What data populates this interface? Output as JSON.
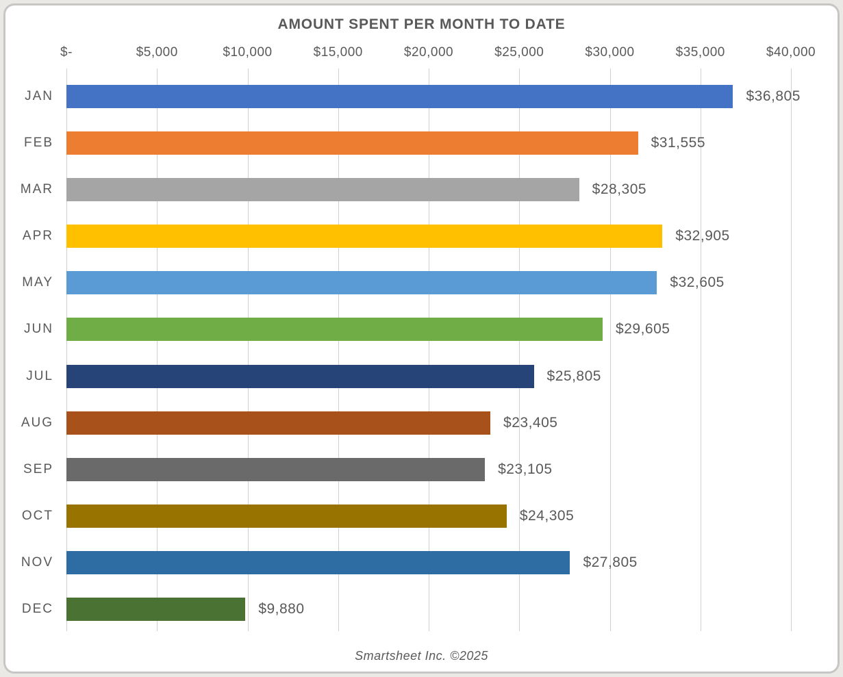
{
  "title": "AMOUNT SPENT PER MONTH TO DATE",
  "footer": "Smartsheet Inc. ©2025",
  "colors": {
    "text": "#595959",
    "gridline": "#d2d0ce",
    "card_background": "#ffffff",
    "card_border": "#c7c6c4",
    "page_background": "#ebe9e6"
  },
  "chart_data": {
    "type": "bar",
    "orientation": "horizontal",
    "title": "AMOUNT SPENT PER MONTH TO DATE",
    "categories": [
      "JAN",
      "FEB",
      "MAR",
      "APR",
      "MAY",
      "JUN",
      "JUL",
      "AUG",
      "SEP",
      "OCT",
      "NOV",
      "DEC"
    ],
    "values": [
      36805,
      31555,
      28305,
      32905,
      32605,
      29605,
      25805,
      23405,
      23105,
      24305,
      27805,
      9880
    ],
    "value_labels": [
      "$36,805",
      "$31,555",
      "$28,305",
      "$32,905",
      "$32,605",
      "$29,605",
      "$25,805",
      "$23,405",
      "$23,105",
      "$24,305",
      "$27,805",
      "$9,880"
    ],
    "bar_colors": [
      "#4472C4",
      "#ED7D31",
      "#A5A5A5",
      "#FFC000",
      "#5B9BD5",
      "#70AD47",
      "#264478",
      "#A9511B",
      "#6A6A6A",
      "#997300",
      "#2E6DA4",
      "#4A7232"
    ],
    "xlabel": "",
    "ylabel": "",
    "xlim": [
      0,
      40000
    ],
    "tick_interval": 5000,
    "axis_tick_labels": [
      "$-",
      "$5,000",
      "$10,000",
      "$15,000",
      "$20,000",
      "$25,000",
      "$30,000",
      "$35,000",
      "$40,000"
    ],
    "grid": true,
    "legend": false
  }
}
